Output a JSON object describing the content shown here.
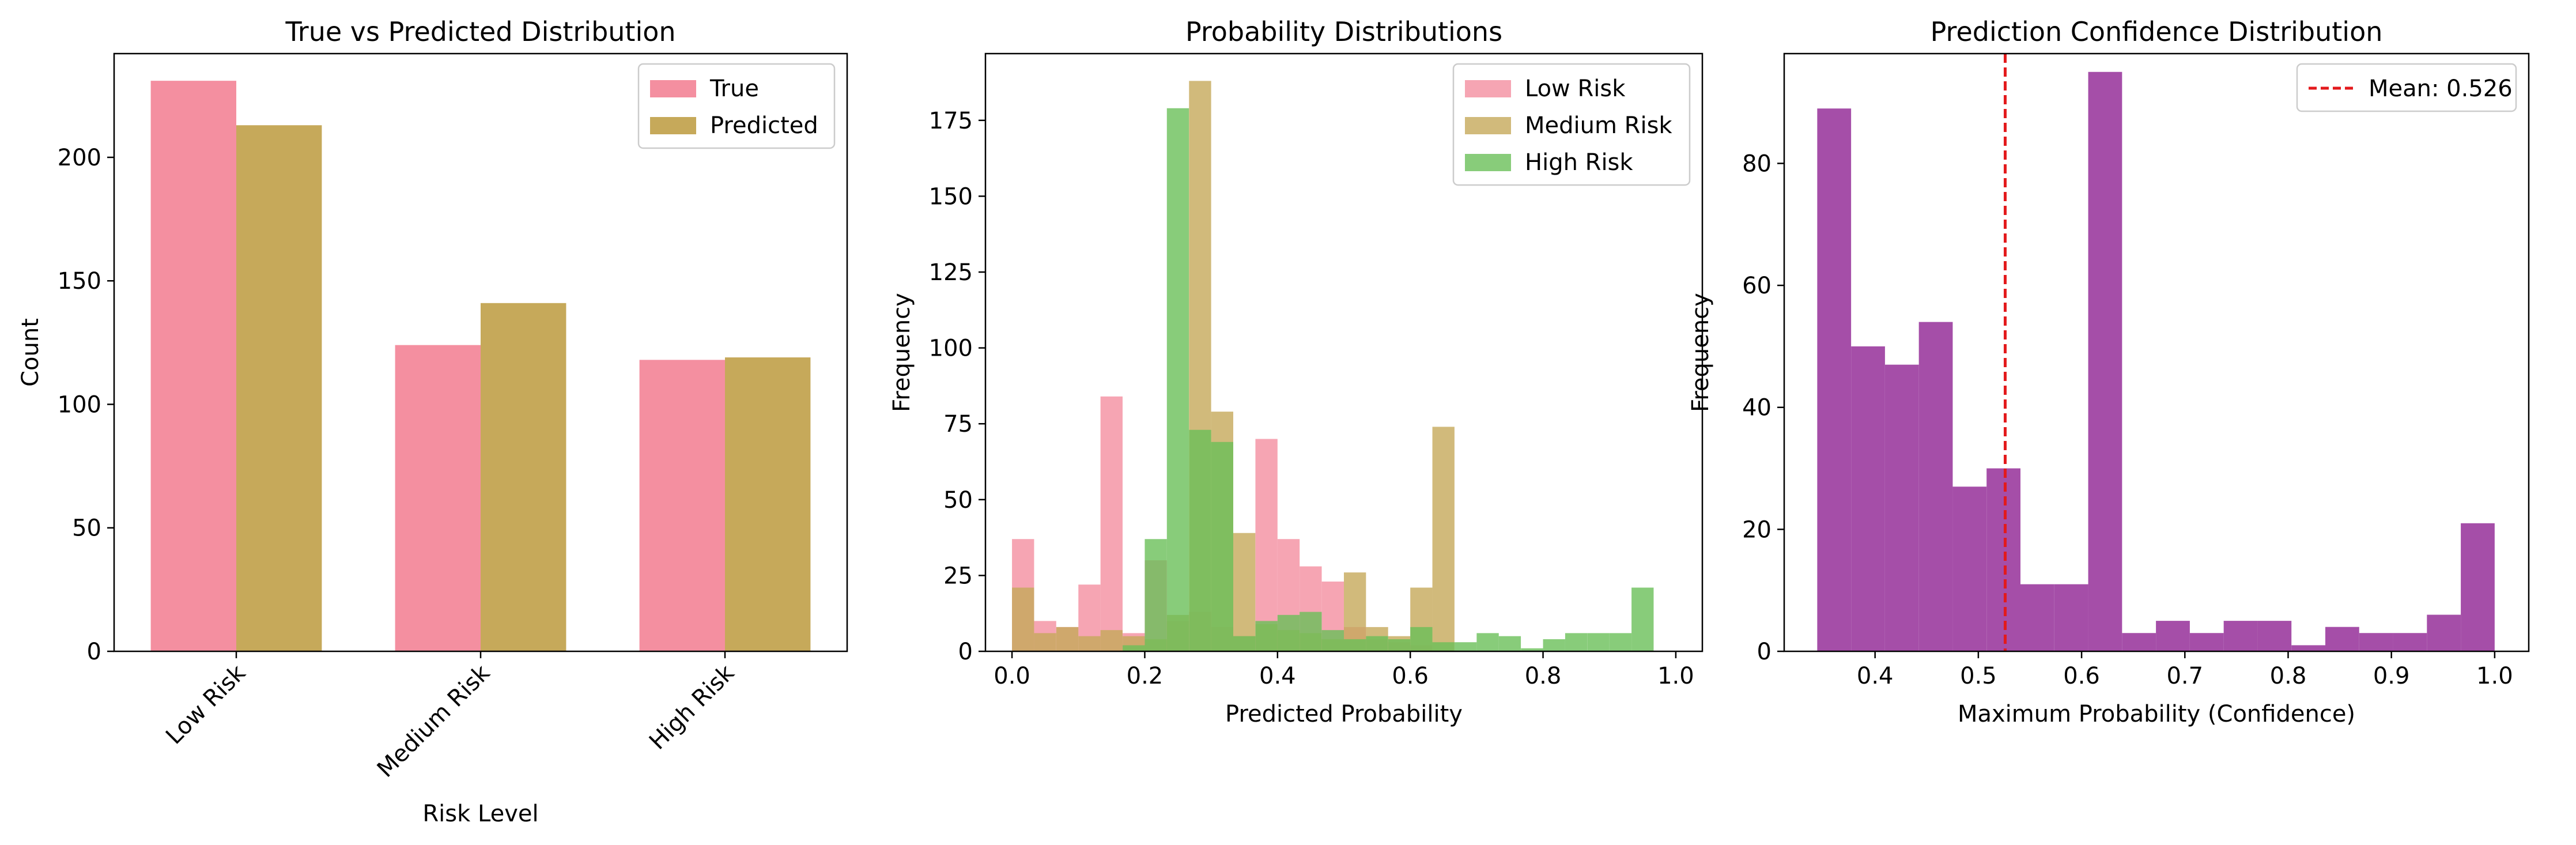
{
  "chart_data": [
    {
      "type": "bar",
      "title": "True vs Predicted Distribution",
      "xlabel": "Risk Level",
      "ylabel": "Count",
      "categories": [
        "Low Risk",
        "Medium Risk",
        "High Risk"
      ],
      "series": [
        {
          "name": "True",
          "values": [
            231,
            124,
            118
          ]
        },
        {
          "name": "Predicted",
          "values": [
            213,
            141,
            119
          ]
        }
      ],
      "ylim": [
        0,
        242
      ],
      "yticks": [
        0,
        50,
        100,
        150,
        200
      ],
      "legend": "top-right",
      "grid": false,
      "colors": {
        "True": "#f48fa0",
        "Predicted": "#c6a95a"
      }
    },
    {
      "type": "histogram",
      "title": "Probability Distributions",
      "xlabel": "Predicted Probability",
      "ylabel": "Frequency",
      "xlim": [
        -0.04,
        1.04
      ],
      "ylim": [
        0,
        197
      ],
      "xticks": [
        0.0,
        0.2,
        0.4,
        0.6,
        0.8,
        1.0
      ],
      "yticks": [
        0,
        25,
        50,
        75,
        100,
        125,
        150,
        175
      ],
      "bin_width": 0.0333,
      "legend": "top-right",
      "grid": false,
      "series": [
        {
          "name": "Low Risk",
          "color": "#f48fa0",
          "bin_starts": [
            0.0,
            0.0333,
            0.0667,
            0.1,
            0.1333,
            0.1667,
            0.2,
            0.2333,
            0.2667,
            0.3,
            0.3333,
            0.3667,
            0.4,
            0.4333,
            0.4667,
            0.5,
            0.5333,
            0.5667,
            0.6
          ],
          "values": [
            37,
            10,
            8,
            22,
            84,
            6,
            30,
            10,
            13,
            8,
            5,
            70,
            37,
            28,
            23,
            8,
            4,
            3,
            2
          ]
        },
        {
          "name": "Medium Risk",
          "color": "#c6a95a",
          "bin_starts": [
            0.0,
            0.0333,
            0.0667,
            0.1,
            0.1333,
            0.1667,
            0.2,
            0.2333,
            0.2667,
            0.3,
            0.3333,
            0.3667,
            0.4,
            0.4333,
            0.4667,
            0.5,
            0.5333,
            0.5667,
            0.6,
            0.6333
          ],
          "values": [
            21,
            6,
            8,
            5,
            7,
            5,
            4,
            12,
            188,
            79,
            39,
            9,
            7,
            6,
            4,
            26,
            8,
            5,
            21,
            74
          ]
        },
        {
          "name": "High Risk",
          "color": "#6abf59",
          "bin_starts": [
            0.1667,
            0.2,
            0.2333,
            0.2667,
            0.3,
            0.3333,
            0.3667,
            0.4,
            0.4333,
            0.4667,
            0.5,
            0.5333,
            0.5667,
            0.6,
            0.6333,
            0.6667,
            0.7,
            0.7333,
            0.7667,
            0.8,
            0.8333,
            0.8667,
            0.9,
            0.9333,
            0.9667
          ],
          "values": [
            2,
            37,
            179,
            73,
            69,
            5,
            10,
            12,
            13,
            7,
            4,
            5,
            4,
            8,
            3,
            3,
            6,
            5,
            1,
            4,
            6,
            6,
            6,
            21,
            0
          ]
        }
      ]
    },
    {
      "type": "histogram",
      "title": "Prediction Confidence Distribution",
      "xlabel": "Maximum Probability (Confidence)",
      "ylabel": "Frequency",
      "xlim": [
        0.312,
        1.033
      ],
      "ylim": [
        0,
        98
      ],
      "xticks": [
        0.4,
        0.5,
        0.6,
        0.7,
        0.8,
        0.9,
        1.0
      ],
      "yticks": [
        0,
        20,
        40,
        60,
        80
      ],
      "bin_width": 0.0328,
      "bin_starts": [
        0.344,
        0.3768,
        0.4096,
        0.4424,
        0.4752,
        0.508,
        0.5408,
        0.5736,
        0.6064,
        0.6392,
        0.672,
        0.7048,
        0.7376,
        0.7704,
        0.8032,
        0.836,
        0.8688,
        0.9016,
        0.9344,
        0.9672
      ],
      "values": [
        89,
        50,
        47,
        54,
        27,
        30,
        11,
        11,
        95,
        3,
        5,
        3,
        5,
        5,
        1,
        4,
        3,
        3,
        6,
        21
      ],
      "color": "#a54ea8",
      "mean_line": {
        "value": 0.526,
        "label": "Mean: 0.526",
        "color": "#e31a1c"
      },
      "legend": "top-right",
      "grid": false
    }
  ]
}
